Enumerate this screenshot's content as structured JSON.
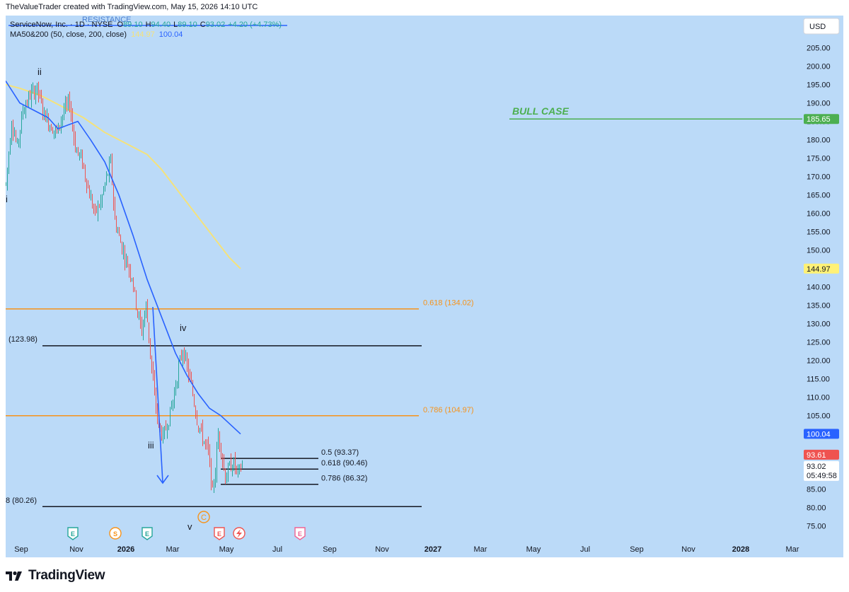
{
  "caption": "TheValueTrader created with TradingView.com, May 15, 2026 14:10 UTC",
  "legend": {
    "symbol": "ServiceNow, Inc. · 1D · NYSE",
    "o_label": "O",
    "o_val": "89.10",
    "h_label": "H",
    "h_val": "94.40",
    "l_label": "L",
    "l_val": "89.10",
    "c_label": "C",
    "c_val": "93.02",
    "change": "+4.20 (+4.73%)",
    "ma_label": "MA50&200 (50, close, 200, close)",
    "ma200_val": "144.97",
    "ma50_val": "100.04",
    "resistance_label": "RESISTANCE"
  },
  "currency_button": "USD",
  "footer_brand": "TradingView",
  "colors": {
    "background": "#bbdaf8",
    "candle_up": "#26a69a",
    "candle_down": "#ef5350",
    "ma50": "#2962ff",
    "ma200": "#f5e27a",
    "fib_orange": "#f7931a",
    "bull_green": "#4caf50",
    "arrow_blue": "#2962ff",
    "black_line": "#131722"
  },
  "chart_data": {
    "type": "candlestick",
    "timeframe": "1D",
    "y_axis": {
      "ticks": [
        75,
        80,
        85,
        90,
        95,
        100,
        105,
        110,
        115,
        120,
        125,
        130,
        135,
        140,
        145,
        150,
        155,
        160,
        165,
        170,
        175,
        180,
        185,
        190,
        195,
        200,
        205
      ],
      "ylim": [
        72,
        211
      ]
    },
    "x_axis": {
      "labels": [
        "Sep",
        "Nov",
        "2026",
        "Mar",
        "May",
        "Jul",
        "Sep",
        "Nov",
        "2027",
        "Mar",
        "May",
        "Jul",
        "Sep",
        "Nov",
        "2028",
        "Mar"
      ],
      "bold": [
        "2026",
        "2027",
        "2028"
      ]
    },
    "price_tags": [
      {
        "value": "185.65",
        "kind": "bull"
      },
      {
        "value": "144.97",
        "kind": "ma200"
      },
      {
        "value": "100.04",
        "kind": "ma50"
      },
      {
        "value": "93.61",
        "kind": "last"
      },
      {
        "value": "93.02",
        "kind": "close"
      }
    ],
    "countdown": "05:49:58",
    "horizontal_levels": [
      {
        "price": 185.65,
        "label": "BULL CASE",
        "color": "green"
      },
      {
        "price": 134.02,
        "label": "0.618 (134.02)",
        "color": "orange"
      },
      {
        "price": 123.98,
        "label": "(123.98)",
        "color": "black"
      },
      {
        "price": 104.97,
        "label": "0.786 (104.97)",
        "color": "orange"
      },
      {
        "price": 93.37,
        "label": "0.5 (93.37)",
        "color": "black"
      },
      {
        "price": 90.46,
        "label": "0.618 (90.46)",
        "color": "black"
      },
      {
        "price": 86.32,
        "label": "0.786 (86.32)",
        "color": "black"
      },
      {
        "price": 80.26,
        "label": "8 (80.26)",
        "color": "black"
      }
    ],
    "wave_labels": [
      "i",
      "ii",
      "iii",
      "iv",
      "v"
    ],
    "events": [
      "E",
      "S",
      "E",
      "E",
      "E"
    ],
    "wave_c_label": "C",
    "last_close": 93.02,
    "ma50_last": 100.04,
    "ma200_last": 144.97
  }
}
